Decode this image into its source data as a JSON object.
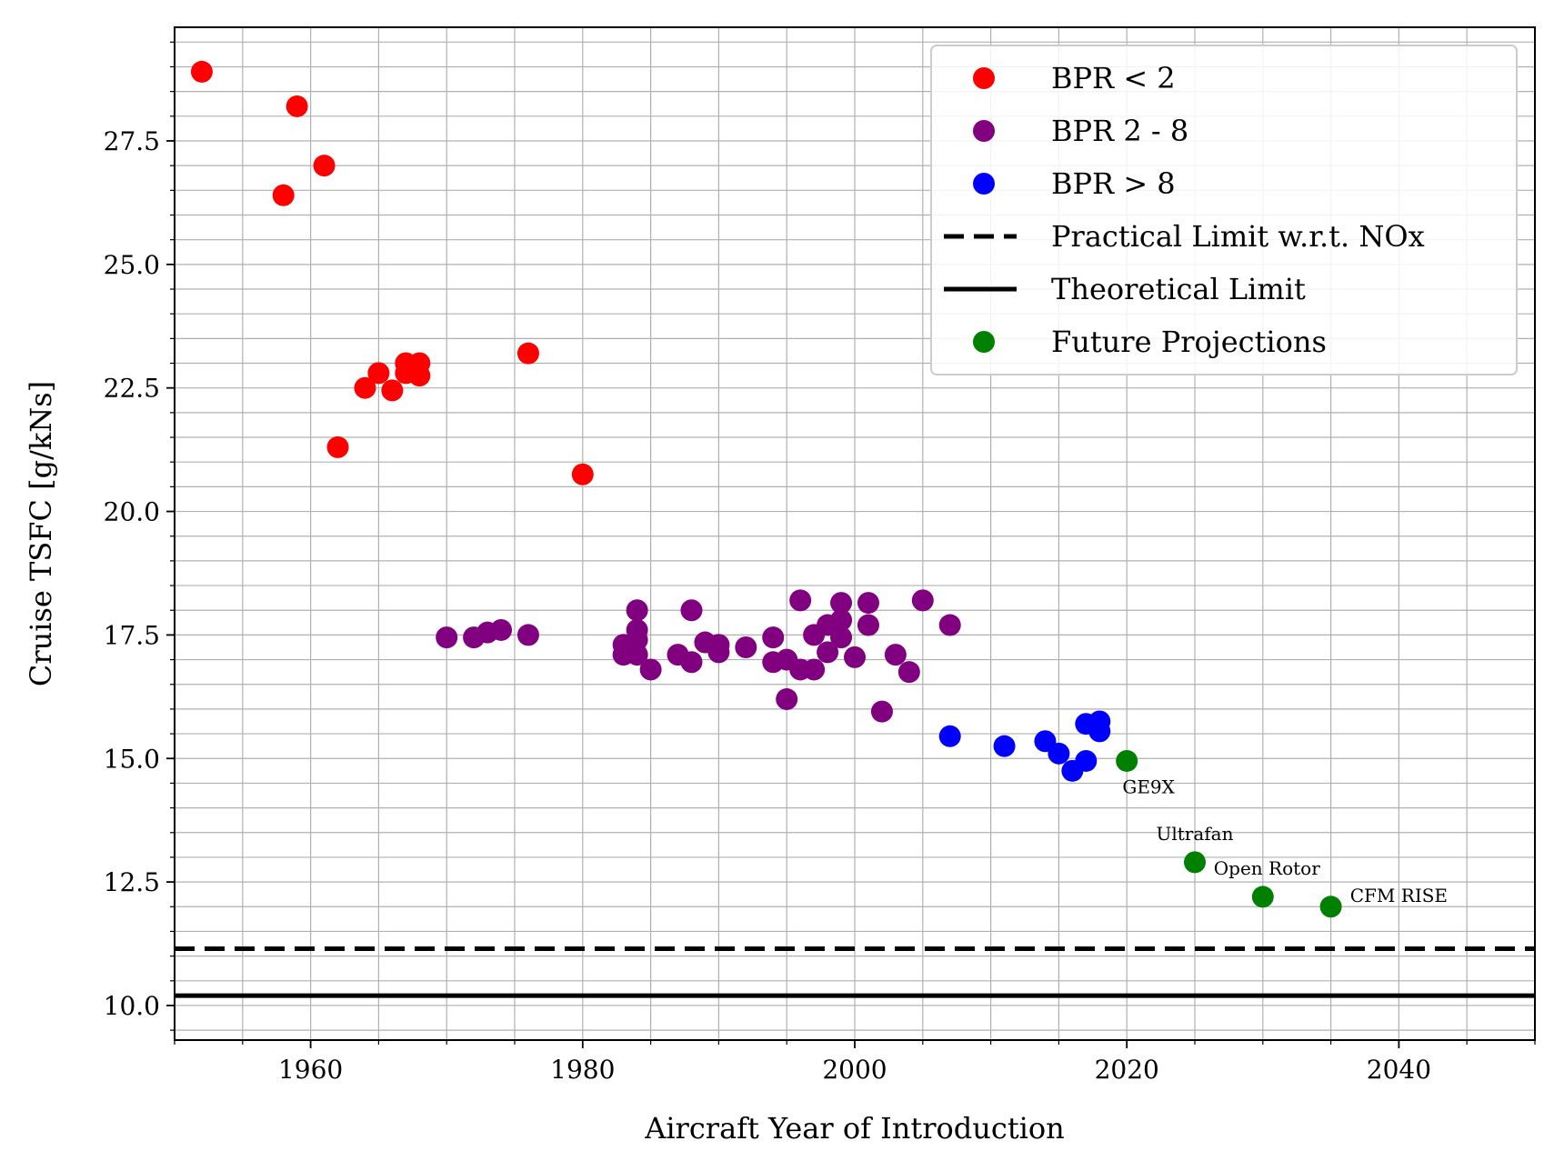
{
  "chart_data": {
    "type": "scatter",
    "xlabel": "Aircraft Year of Introduction",
    "ylabel": "Cruise TSFC [g/kNs]",
    "xlim": [
      1950,
      2050
    ],
    "ylim": [
      9.3,
      29.8
    ],
    "xticks": [
      1960,
      1980,
      2000,
      2020,
      2040
    ],
    "xtick_labels": [
      "1960",
      "1980",
      "2000",
      "2020",
      "2040"
    ],
    "yticks": [
      10.0,
      12.5,
      15.0,
      17.5,
      20.0,
      22.5,
      25.0,
      27.5
    ],
    "ytick_labels": [
      "10.0",
      "12.5",
      "15.0",
      "17.5",
      "20.0",
      "22.5",
      "25.0",
      "27.5"
    ],
    "minor_x_step": 5,
    "minor_y_step": 0.5,
    "grid": "major and minor",
    "legend_position": "top-right",
    "series": [
      {
        "name": "BPR < 2",
        "color": "#ff0000",
        "points": [
          [
            1952,
            28.9
          ],
          [
            1958,
            26.4
          ],
          [
            1959,
            28.2
          ],
          [
            1961,
            27.0
          ],
          [
            1962,
            21.3
          ],
          [
            1964,
            22.5
          ],
          [
            1965,
            22.8
          ],
          [
            1966,
            22.45
          ],
          [
            1967,
            23.0
          ],
          [
            1967,
            22.8
          ],
          [
            1968,
            23.0
          ],
          [
            1968,
            22.75
          ],
          [
            1976,
            23.2
          ],
          [
            1980,
            20.75
          ]
        ]
      },
      {
        "name": "BPR 2 - 8",
        "color": "#800080",
        "points": [
          [
            1970,
            17.45
          ],
          [
            1972,
            17.45
          ],
          [
            1973,
            17.55
          ],
          [
            1974,
            17.6
          ],
          [
            1976,
            17.5
          ],
          [
            1983,
            17.3
          ],
          [
            1983,
            17.1
          ],
          [
            1984,
            18.0
          ],
          [
            1984,
            17.6
          ],
          [
            1984,
            17.4
          ],
          [
            1984,
            17.1
          ],
          [
            1985,
            16.8
          ],
          [
            1987,
            17.1
          ],
          [
            1988,
            18.0
          ],
          [
            1988,
            16.95
          ],
          [
            1989,
            17.35
          ],
          [
            1990,
            17.3
          ],
          [
            1990,
            17.15
          ],
          [
            1992,
            17.25
          ],
          [
            1994,
            17.45
          ],
          [
            1994,
            16.95
          ],
          [
            1995,
            16.2
          ],
          [
            1995,
            17.0
          ],
          [
            1996,
            18.2
          ],
          [
            1996,
            16.8
          ],
          [
            1997,
            17.5
          ],
          [
            1997,
            16.8
          ],
          [
            1998,
            17.7
          ],
          [
            1998,
            17.15
          ],
          [
            1999,
            18.15
          ],
          [
            1999,
            17.8
          ],
          [
            1999,
            17.45
          ],
          [
            2000,
            17.05
          ],
          [
            2001,
            18.15
          ],
          [
            2001,
            17.7
          ],
          [
            2002,
            15.95
          ],
          [
            2003,
            17.1
          ],
          [
            2004,
            16.75
          ],
          [
            2005,
            18.2
          ],
          [
            2007,
            17.7
          ]
        ]
      },
      {
        "name": "BPR > 8",
        "color": "#0000ff",
        "points": [
          [
            2007,
            15.45
          ],
          [
            2011,
            15.25
          ],
          [
            2014,
            15.35
          ],
          [
            2015,
            15.1
          ],
          [
            2016,
            14.75
          ],
          [
            2017,
            15.7
          ],
          [
            2017,
            14.95
          ],
          [
            2018,
            15.75
          ],
          [
            2018,
            15.55
          ]
        ]
      },
      {
        "name": "Future Projections",
        "color": "#008000",
        "points": [
          [
            2020,
            14.95
          ],
          [
            2025,
            12.9
          ],
          [
            2030,
            12.2
          ],
          [
            2035,
            12.0
          ]
        ]
      }
    ],
    "hlines": [
      {
        "name": "Practical Limit w.r.t. NOx",
        "y": 11.15,
        "style": "dashed",
        "color": "#000000"
      },
      {
        "name": "Theoretical Limit",
        "y": 10.2,
        "style": "solid",
        "color": "#000000"
      }
    ],
    "legend": [
      {
        "label": "BPR < 2",
        "marker": "dot",
        "color": "#ff0000"
      },
      {
        "label": "BPR 2 - 8",
        "marker": "dot",
        "color": "#800080"
      },
      {
        "label": "BPR > 8",
        "marker": "dot",
        "color": "#0000ff"
      },
      {
        "label": "Practical Limit w.r.t. NOx",
        "marker": "dashed-line",
        "color": "#000000"
      },
      {
        "label": "Theoretical Limit",
        "marker": "solid-line",
        "color": "#000000"
      },
      {
        "label": "Future Projections",
        "marker": "dot",
        "color": "#008000"
      }
    ],
    "annotations": [
      {
        "text": "GE9X",
        "x": 2021.6,
        "y": 14.3
      },
      {
        "text": "Ultrafan",
        "x": 2025.0,
        "y": 13.35
      },
      {
        "text": "Open Rotor",
        "x": 2030.3,
        "y": 12.65
      },
      {
        "text": "CFM RISE",
        "x": 2040.0,
        "y": 12.1
      }
    ]
  }
}
